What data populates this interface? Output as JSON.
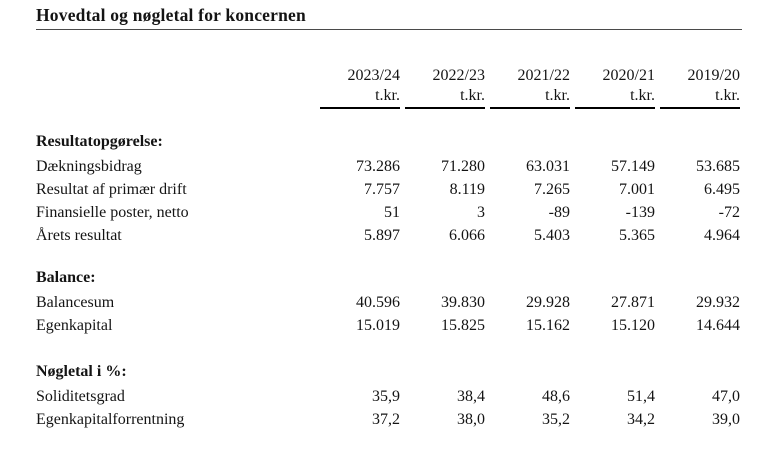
{
  "page": {
    "title": "Hovedtal og nøgletal for koncernen"
  },
  "colors": {
    "text": "#141414",
    "title_rule": "#4a4a4a",
    "header_rule": "#000000",
    "background": "#ffffff"
  },
  "table": {
    "unit_label": "t.kr.",
    "years": [
      "2023/24",
      "2022/23",
      "2021/22",
      "2020/21",
      "2019/20"
    ],
    "sections": [
      {
        "heading": "Resultatopgørelse:",
        "rows": [
          {
            "label": "Dækningsbidrag",
            "values": [
              "73.286",
              "71.280",
              "63.031",
              "57.149",
              "53.685"
            ]
          },
          {
            "label": "Resultat af primær drift",
            "values": [
              "7.757",
              "8.119",
              "7.265",
              "7.001",
              "6.495"
            ]
          },
          {
            "label": "Finansielle poster, netto",
            "values": [
              "51",
              "3",
              "-89",
              "-139",
              "-72"
            ]
          },
          {
            "label": "Årets resultat",
            "values": [
              "5.897",
              "6.066",
              "5.403",
              "5.365",
              "4.964"
            ]
          }
        ]
      },
      {
        "heading": "Balance:",
        "rows": [
          {
            "label": "Balancesum",
            "values": [
              "40.596",
              "39.830",
              "29.928",
              "27.871",
              "29.932"
            ]
          },
          {
            "label": "Egenkapital",
            "values": [
              "15.019",
              "15.825",
              "15.162",
              "15.120",
              "14.644"
            ]
          }
        ]
      },
      {
        "heading": "Nøgletal i %:",
        "rows": [
          {
            "label": "Soliditetsgrad",
            "values": [
              "35,9",
              "38,4",
              "48,6",
              "51,4",
              "47,0"
            ]
          },
          {
            "label": "Egenkapitalforrentning",
            "values": [
              "37,2",
              "38,0",
              "35,2",
              "34,2",
              "39,0"
            ]
          }
        ]
      }
    ]
  }
}
